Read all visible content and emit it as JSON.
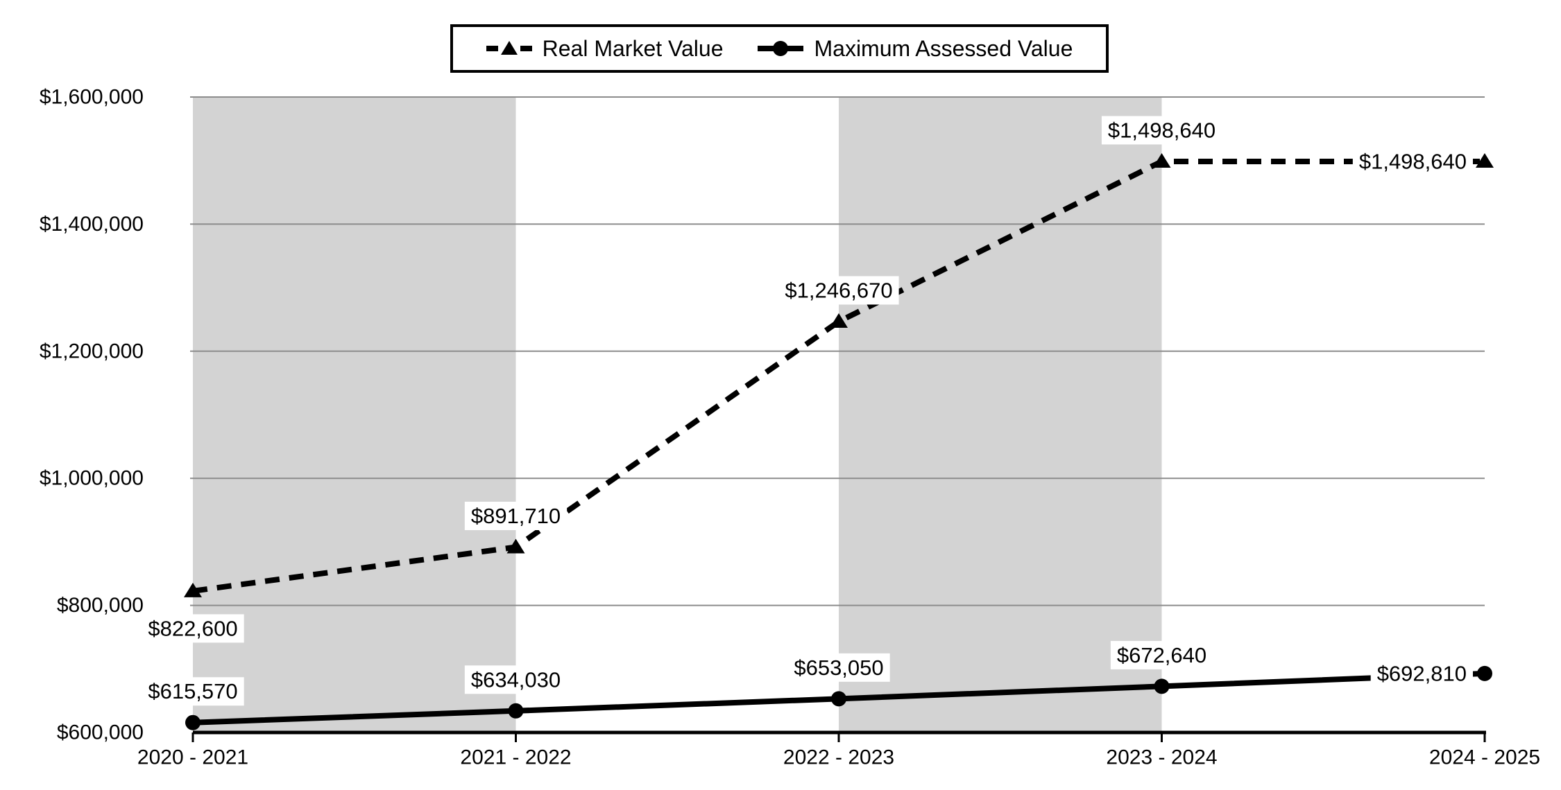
{
  "chart_data": {
    "type": "line",
    "categories": [
      "2020 - 2021",
      "2021 - 2022",
      "2022 - 2023",
      "2023 - 2024",
      "2024 - 2025"
    ],
    "series": [
      {
        "name": "Real Market Value",
        "line_style": "dashed",
        "marker": "triangle",
        "color": "#000000",
        "values": [
          822600,
          891710,
          1246670,
          1498640,
          1498640
        ],
        "data_labels": [
          "$822,600",
          "$891,710",
          "$1,246,670",
          "$1,498,640",
          "$1,498,640"
        ],
        "label_placements": [
          "below",
          "above",
          "above",
          "above",
          "inline-left"
        ]
      },
      {
        "name": "Maximum Assessed Value",
        "line_style": "solid",
        "marker": "circle",
        "color": "#000000",
        "values": [
          615570,
          634030,
          653050,
          672640,
          692810
        ],
        "data_labels": [
          "$615,570",
          "$634,030",
          "$653,050",
          "$672,640",
          "$692,810"
        ],
        "label_placements": [
          "above",
          "above",
          "above",
          "above",
          "inline-left"
        ]
      }
    ],
    "y_axis": {
      "min": 600000,
      "max": 1600000,
      "step": 200000,
      "tick_labels": [
        "$600,000",
        "$800,000",
        "$1,000,000",
        "$1,200,000",
        "$1,400,000",
        "$1,600,000"
      ]
    },
    "x_axis": {
      "tick_labels": [
        "2020 - 2021",
        "2021 - 2022",
        "2022 - 2023",
        "2023 - 2024",
        "2024 - 2025"
      ]
    },
    "legend_position": "top",
    "grid": true,
    "style": {
      "background": "#ffffff",
      "band_color": "#d3d3d3",
      "gridline_color": "#8c8c8c",
      "axis_color": "#000000",
      "text_color": "#000000",
      "shaded_column_spans": [
        [
          0,
          1
        ],
        [
          2,
          3
        ]
      ]
    }
  }
}
